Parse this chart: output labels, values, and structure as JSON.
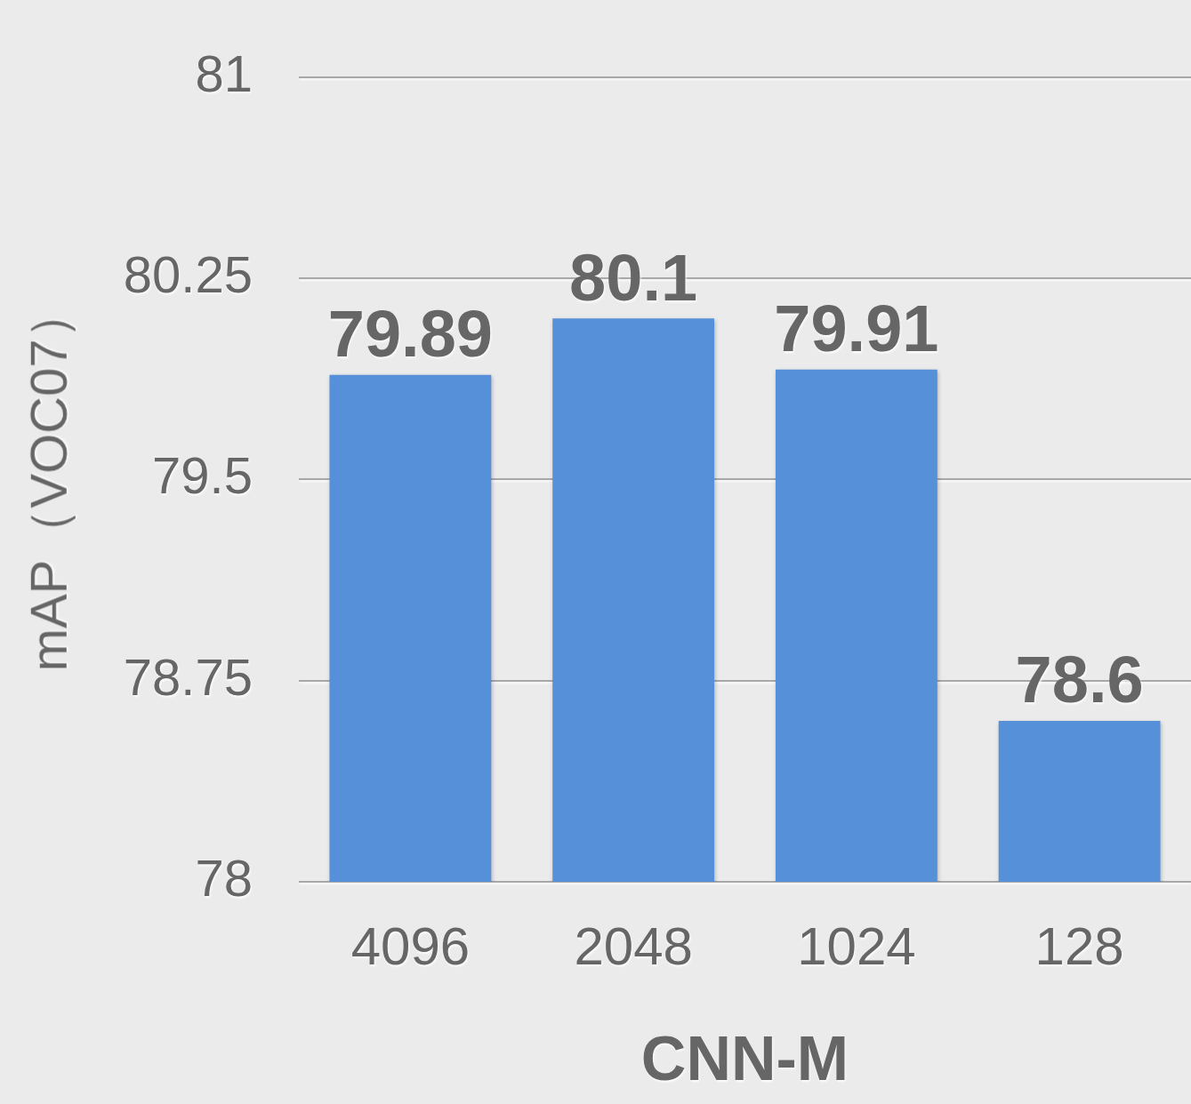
{
  "chart_data": {
    "type": "bar",
    "xlabel": "CNN-M",
    "ylabel": "mAP（VOC07）",
    "categories": [
      "4096",
      "2048",
      "1024",
      "128"
    ],
    "values": [
      79.89,
      80.1,
      79.91,
      78.6
    ],
    "color": "#5590d9",
    "ylim": [
      78,
      81
    ],
    "yticks": [
      78,
      78.75,
      79.5,
      80.25,
      81
    ],
    "grid": "y",
    "legend": false,
    "data_labels": true
  }
}
